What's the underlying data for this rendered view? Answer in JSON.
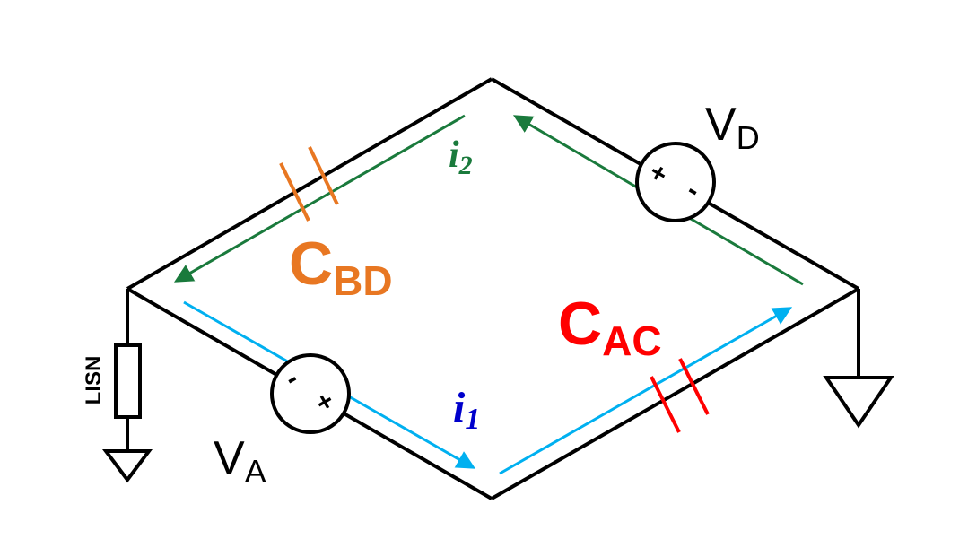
{
  "labels": {
    "vd": {
      "main": "V",
      "sub": "D"
    },
    "va": {
      "main": "V",
      "sub": "A"
    },
    "cbd": {
      "main": "C",
      "sub": "BD"
    },
    "cac": {
      "main": "C",
      "sub": "AC"
    },
    "i1": {
      "main": "i",
      "sub": "1"
    },
    "i2": {
      "main": "i",
      "sub": "2"
    },
    "lisn": "LISN",
    "vd_plus": "+",
    "vd_minus": "-",
    "va_plus": "+",
    "va_minus": "-"
  },
  "colors": {
    "wire": "#000000",
    "current_i1": "#00b0f0",
    "current_i2": "#1a7a3c",
    "cap_bd": "#e87722",
    "cap_ac": "#ff0000",
    "i1_label": "#0000cc",
    "i2_label": "#1a7a3c"
  }
}
